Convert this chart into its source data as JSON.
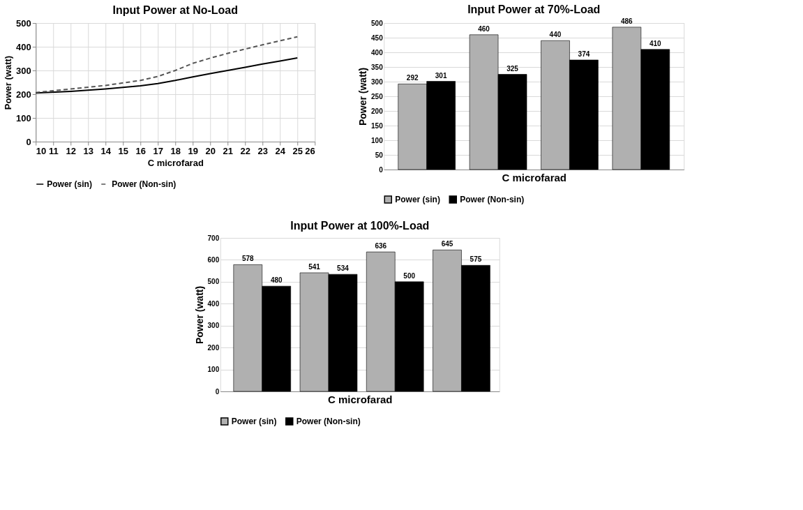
{
  "chart_data": [
    {
      "type": "line",
      "title": "Input Power at No-Load",
      "xlabel": "C microfarad",
      "ylabel": "Power (watt)",
      "xlim": [
        10,
        26
      ],
      "xticks": [
        10,
        11,
        12,
        13,
        14,
        15,
        16,
        17,
        18,
        19,
        20,
        21,
        22,
        23,
        24,
        25,
        26
      ],
      "ylim": [
        0,
        500
      ],
      "yticks": [
        0,
        100,
        200,
        300,
        400,
        500
      ],
      "grid": true,
      "legend": "bottom",
      "x": [
        10,
        12,
        14,
        16,
        17,
        18,
        19,
        20,
        21,
        22,
        23,
        24,
        25
      ],
      "series": [
        {
          "name": "Power (sin)",
          "color": "#000000",
          "line_style": "solid",
          "values": [
            205,
            212,
            222,
            235,
            245,
            258,
            273,
            287,
            300,
            313,
            327,
            340,
            353
          ]
        },
        {
          "name": "Power (Non-sin)",
          "color": "#555555",
          "line_style": "dashed",
          "values": [
            207,
            222,
            237,
            258,
            275,
            300,
            330,
            352,
            372,
            390,
            408,
            425,
            442
          ]
        }
      ]
    },
    {
      "type": "bar",
      "title": "Input Power at 70%-Load",
      "xlabel": "C microfarad",
      "ylabel": "Power (watt)",
      "categories": [
        null,
        null,
        null,
        null
      ],
      "ylim": [
        0,
        500
      ],
      "yticks": [
        0,
        50,
        100,
        150,
        200,
        250,
        300,
        350,
        400,
        450,
        500
      ],
      "grid": "y",
      "legend": "bottom",
      "tick_labels": "y",
      "data_labels": true,
      "series": [
        {
          "name": "Power (sin)",
          "color": "#b0b0b0",
          "values": [
            292,
            460,
            440,
            486
          ]
        },
        {
          "name": "Power (Non-sin)",
          "color": "#000000",
          "values": [
            301,
            325,
            374,
            410
          ]
        }
      ]
    },
    {
      "type": "bar",
      "title": "Input Power at 100%-Load",
      "xlabel": "C microfarad",
      "ylabel": "Power (watt)",
      "categories": [
        null,
        null,
        null,
        null
      ],
      "ylim": [
        0,
        700
      ],
      "yticks": [
        0,
        100,
        200,
        300,
        400,
        500,
        600,
        700
      ],
      "grid": "y",
      "legend": "bottom",
      "tick_labels": "y",
      "data_labels": true,
      "series": [
        {
          "name": "Power (sin)",
          "color": "#b0b0b0",
          "values": [
            578,
            541,
            636,
            645
          ]
        },
        {
          "name": "Power (Non-sin)",
          "color": "#000000",
          "values": [
            480,
            534,
            500,
            575
          ]
        }
      ]
    }
  ]
}
